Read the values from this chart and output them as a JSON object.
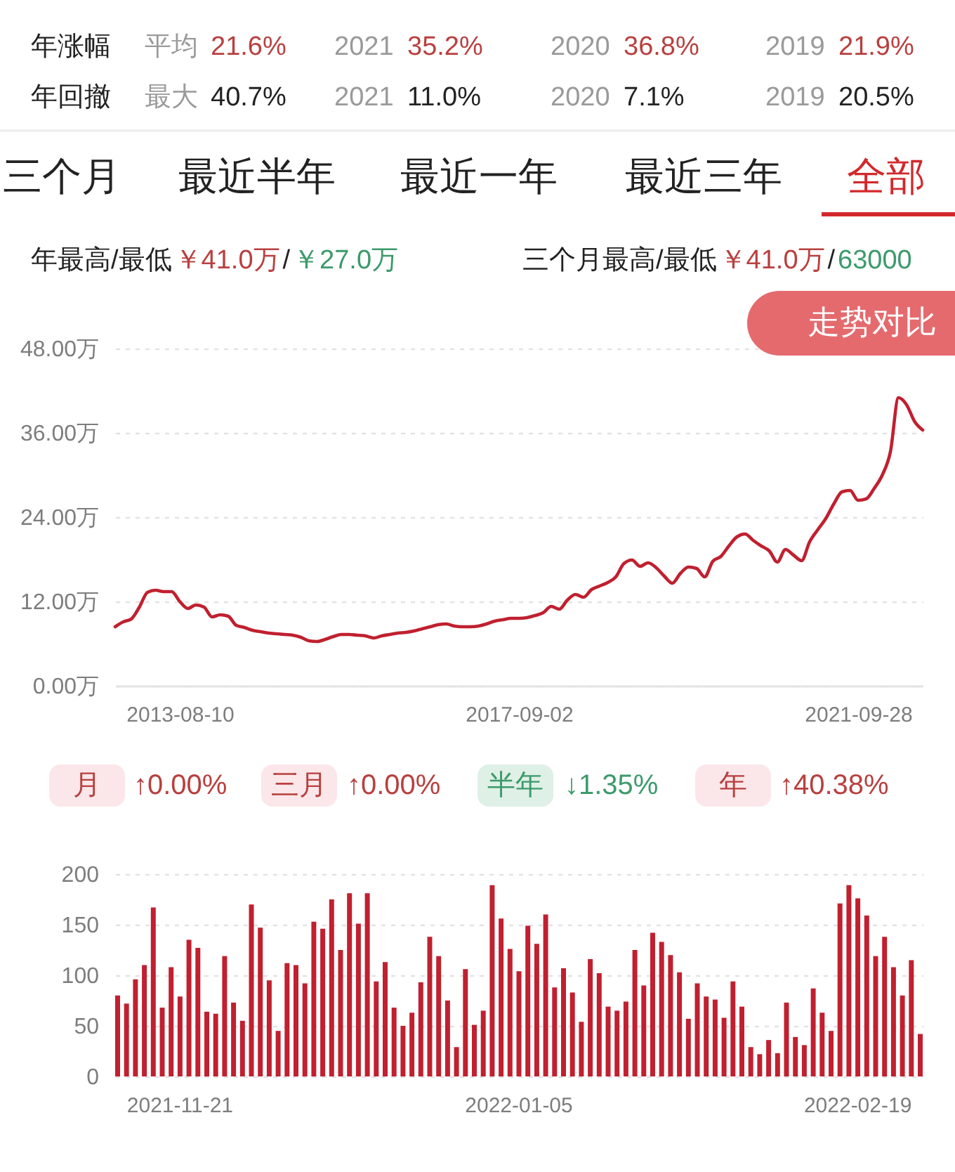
{
  "chart_data": [
    {
      "type": "other",
      "annotations": [
        "年涨幅",
        "平均",
        "21.6%",
        "2021",
        "35.2%",
        "2020",
        "36.8%",
        "2019",
        "21.9%",
        "年回撤",
        "最大",
        "40.7%",
        "2021",
        "11.0%",
        "2020",
        "7.1%",
        "2019",
        "20.5%",
        "三个月",
        "最近半年",
        "最近一年",
        "最近三年",
        "全部",
        "年最高/最低",
        "￥41.0万",
        "/",
        "￥27.0万",
        "三个月最高/最低",
        "￥41.0万",
        "/",
        "63000"
      ]
    },
    {
      "type": "line",
      "categories": [
        null,
        null,
        null,
        null,
        null,
        null,
        null,
        null,
        "2013-08-10",
        null,
        null,
        null,
        null,
        null,
        null,
        null,
        null,
        null,
        null,
        null,
        null,
        null,
        null,
        null,
        null,
        null,
        null,
        null,
        null,
        null,
        null,
        null,
        null,
        null,
        null,
        null,
        null,
        null,
        null,
        null,
        null,
        null,
        null,
        null,
        null,
        null,
        null,
        null,
        null,
        null,
        "2017-09-02",
        null,
        null,
        null,
        null,
        null,
        null,
        null,
        null,
        null,
        null,
        null,
        null,
        null,
        null,
        null,
        null,
        null,
        null,
        null,
        null,
        null,
        null,
        null,
        null,
        null,
        null,
        null,
        null,
        null,
        null,
        null,
        null,
        null,
        null,
        null,
        null,
        null,
        null,
        null,
        null,
        null,
        "2021-09-28",
        null,
        null,
        null,
        null,
        null,
        null,
        null,
        null
      ],
      "series": [
        {
          "color": "#c0202f",
          "values": [
            8.4,
            9.1,
            9.5,
            11.2,
            13.3,
            13.6,
            13.4,
            13.4,
            12.0,
            11.0,
            11.5,
            11.2,
            9.8,
            10.1,
            9.9,
            8.6,
            8.3,
            7.9,
            7.7,
            7.5,
            7.4,
            7.3,
            7.2,
            6.9,
            6.4,
            6.3,
            6.6,
            7.0,
            7.3,
            7.3,
            7.2,
            7.1,
            6.8,
            7.1,
            7.3,
            7.5,
            7.6,
            7.8,
            8.1,
            8.4,
            8.7,
            8.8,
            8.5,
            8.4,
            8.4,
            8.5,
            8.8,
            9.2,
            9.4,
            9.6,
            9.6,
            9.7,
            10.0,
            10.4,
            11.3,
            10.9,
            12.2,
            13.0,
            12.6,
            13.7,
            14.2,
            14.7,
            15.5,
            17.4,
            17.9,
            17.0,
            17.5,
            16.8,
            15.6,
            14.6,
            16.0,
            16.9,
            16.7,
            15.5,
            17.7,
            18.4,
            19.9,
            21.2,
            21.6,
            20.7,
            19.9,
            19.2,
            17.6,
            19.4,
            18.6,
            17.8,
            20.5,
            22.2,
            23.8,
            25.9,
            27.6,
            27.8,
            26.4,
            26.6,
            28.1,
            30.0,
            33.3,
            41.0,
            40.0,
            37.6,
            36.4
          ]
        }
      ],
      "ylim": [
        0,
        48
      ],
      "yticks": [
        {
          "value": 0,
          "label": "0.00万"
        },
        {
          "value": 12,
          "label": "12.00万"
        },
        {
          "value": 24,
          "label": "24.00万"
        },
        {
          "value": 36,
          "label": "36.00万"
        },
        {
          "value": 48,
          "label": "48.00万"
        }
      ],
      "grid": "y",
      "annotations": [
        "走势对比"
      ]
    },
    {
      "type": "other",
      "annotations": [
        "月",
        "↑0.00%",
        "三月",
        "↑0.00%",
        "半年",
        "↓1.35%",
        "年",
        "↑40.38%"
      ]
    },
    {
      "type": "bar",
      "categories": [
        null,
        null,
        null,
        null,
        null,
        null,
        null,
        "2021-11-21",
        null,
        null,
        null,
        null,
        null,
        null,
        null,
        null,
        null,
        null,
        null,
        null,
        null,
        null,
        null,
        null,
        null,
        null,
        null,
        null,
        null,
        null,
        null,
        null,
        null,
        null,
        null,
        null,
        null,
        null,
        null,
        null,
        null,
        null,
        null,
        null,
        null,
        "2022-01-05",
        null,
        null,
        null,
        null,
        null,
        null,
        null,
        null,
        null,
        null,
        null,
        null,
        null,
        null,
        null,
        null,
        null,
        null,
        null,
        null,
        null,
        null,
        null,
        null,
        null,
        null,
        null,
        null,
        null,
        null,
        null,
        null,
        null,
        null,
        null,
        null,
        null,
        "2022-02-19",
        null,
        null,
        null,
        null,
        null,
        null,
        null
      ],
      "values": [
        80,
        72,
        96,
        110,
        167,
        68,
        108,
        79,
        135,
        127,
        64,
        62,
        119,
        73,
        55,
        170,
        147,
        95,
        45,
        112,
        110,
        92,
        153,
        146,
        175,
        125,
        181,
        151,
        181,
        94,
        113,
        68,
        50,
        63,
        93,
        138,
        119,
        75,
        29,
        106,
        51,
        65,
        189,
        156,
        126,
        104,
        149,
        131,
        160,
        88,
        107,
        83,
        54,
        116,
        102,
        69,
        65,
        74,
        125,
        90,
        142,
        133,
        120,
        103,
        57,
        92,
        79,
        76,
        58,
        94,
        69,
        29,
        22,
        36,
        23,
        73,
        39,
        31,
        87,
        63,
        45,
        171,
        189,
        176,
        159,
        119,
        138,
        108,
        80,
        115,
        42
      ],
      "color": "#c0202f",
      "ylim": [
        0,
        200
      ],
      "yticks": [
        0,
        50,
        100,
        150,
        200
      ],
      "grid": "y"
    }
  ]
}
